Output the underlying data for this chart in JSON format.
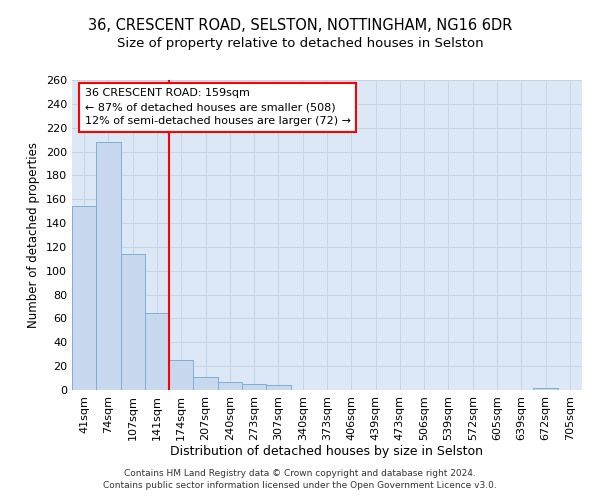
{
  "title1": "36, CRESCENT ROAD, SELSTON, NOTTINGHAM, NG16 6DR",
  "title2": "Size of property relative to detached houses in Selston",
  "xlabel": "Distribution of detached houses by size in Selston",
  "ylabel": "Number of detached properties",
  "footnote1": "Contains HM Land Registry data © Crown copyright and database right 2024.",
  "footnote2": "Contains public sector information licensed under the Open Government Licence v3.0.",
  "bar_labels": [
    "41sqm",
    "74sqm",
    "107sqm",
    "141sqm",
    "174sqm",
    "207sqm",
    "240sqm",
    "273sqm",
    "307sqm",
    "340sqm",
    "373sqm",
    "406sqm",
    "439sqm",
    "473sqm",
    "506sqm",
    "539sqm",
    "572sqm",
    "605sqm",
    "639sqm",
    "672sqm",
    "705sqm"
  ],
  "bar_values": [
    154,
    208,
    114,
    65,
    25,
    11,
    7,
    5,
    4,
    0,
    0,
    0,
    0,
    0,
    0,
    0,
    0,
    0,
    0,
    2,
    0
  ],
  "bar_color": "#c8d8ee",
  "bar_edge_color": "#7bafd4",
  "vline_x": 3.5,
  "vline_color": "red",
  "annotation_line1": "36 CRESCENT ROAD: 159sqm",
  "annotation_line2": "← 87% of detached houses are smaller (508)",
  "annotation_line3": "12% of semi-detached houses are larger (72) →",
  "annotation_box_color": "white",
  "annotation_box_edge_color": "red",
  "ylim": [
    0,
    260
  ],
  "yticks": [
    0,
    20,
    40,
    60,
    80,
    100,
    120,
    140,
    160,
    180,
    200,
    220,
    240,
    260
  ],
  "grid_color": "#c8d4e3",
  "bg_color": "#dce8f5",
  "title1_fontsize": 10.5,
  "title2_fontsize": 9.5,
  "xlabel_fontsize": 9,
  "ylabel_fontsize": 8.5,
  "tick_fontsize": 8,
  "annot_fontsize": 8,
  "footnote_fontsize": 6.5
}
